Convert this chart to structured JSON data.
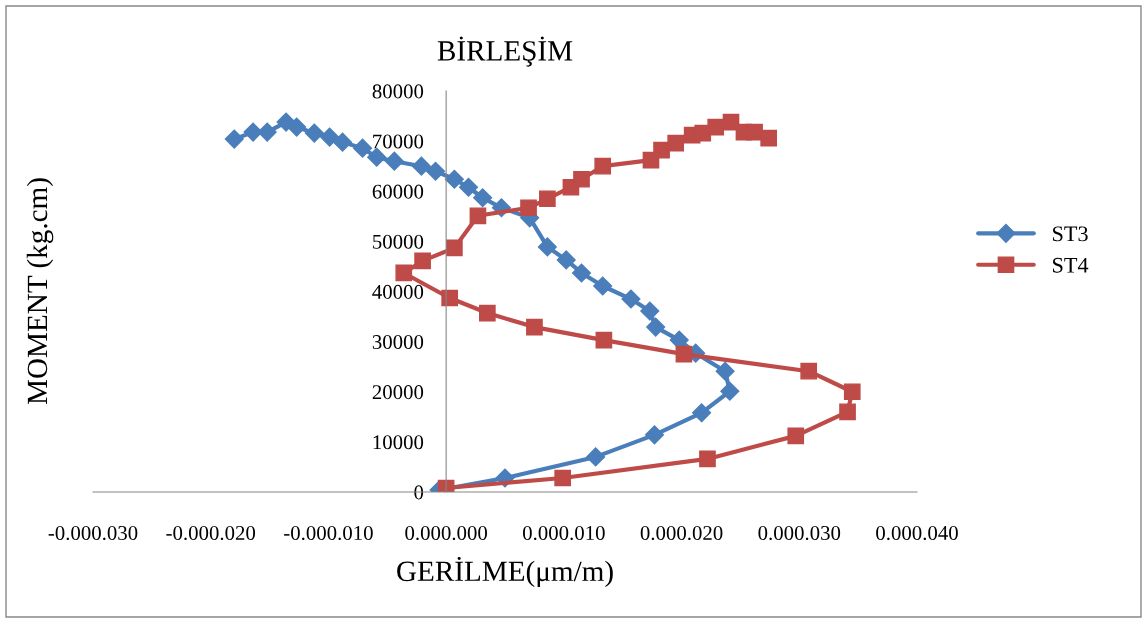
{
  "chart_data": {
    "type": "line",
    "title": "BİRLEŞİM",
    "xlabel": "GERİLME(μm/m)",
    "ylabel": "MOMENT (kg.cm)",
    "xlim": [
      -30,
      40
    ],
    "xticks": [
      {
        "value": -30,
        "label": "-0.000.030"
      },
      {
        "value": -20,
        "label": "-0.000.020"
      },
      {
        "value": -10,
        "label": "-0.000.010"
      },
      {
        "value": 0,
        "label": "0.000.000"
      },
      {
        "value": 10,
        "label": "0.000.010"
      },
      {
        "value": 20,
        "label": "0.000.020"
      },
      {
        "value": 30,
        "label": "0.000.030"
      },
      {
        "value": 40,
        "label": "0.000.040"
      }
    ],
    "ylim": [
      0,
      80000
    ],
    "yticks": [
      0,
      10000,
      20000,
      30000,
      40000,
      50000,
      60000,
      70000,
      80000
    ],
    "grid": false,
    "legend": "right",
    "line_style": "solid",
    "series": [
      {
        "name": "ST3",
        "color": "#4a7ebb",
        "marker": "diamond",
        "x": [
          -0.6,
          5.0,
          12.7,
          17.7,
          21.7,
          24.1,
          23.7,
          21.2,
          19.8,
          17.8,
          17.3,
          15.7,
          13.3,
          11.5,
          10.2,
          8.6,
          7.1,
          4.7,
          3.1,
          1.9,
          0.7,
          -0.9,
          -2.1,
          -4.4,
          -5.9,
          -7.1,
          -8.8,
          -9.9,
          -11.2,
          -12.7,
          -13.6,
          -15.2,
          -16.4,
          -18.0
        ],
        "values": [
          400,
          2800,
          7000,
          11400,
          15800,
          20100,
          24100,
          27700,
          30300,
          32900,
          36100,
          38500,
          41100,
          43700,
          46300,
          48900,
          54700,
          56700,
          58700,
          60800,
          62400,
          64000,
          65000,
          66000,
          66800,
          68600,
          69800,
          70800,
          71600,
          72800,
          73800,
          71800,
          71800,
          70400
        ]
      },
      {
        "name": "ST4",
        "color": "#be4b48",
        "marker": "square",
        "x": [
          0,
          9.9,
          22.2,
          29.7,
          34.1,
          34.5,
          30.8,
          20.2,
          13.4,
          7.5,
          3.5,
          0.3,
          -3.6,
          -2.0,
          0.7,
          2.7,
          7.0,
          8.6,
          10.6,
          11.5,
          13.3,
          17.4,
          18.3,
          19.5,
          20.9,
          21.8,
          22.9,
          24.2,
          25.3,
          26.2,
          27.4
        ],
        "values": [
          800,
          2800,
          6600,
          11200,
          16000,
          20000,
          24100,
          27500,
          30300,
          32900,
          35700,
          38700,
          43700,
          46100,
          48700,
          55100,
          56700,
          58500,
          60800,
          62400,
          65000,
          66200,
          68200,
          69600,
          71200,
          71600,
          72800,
          73800,
          71800,
          71800,
          70600
        ]
      }
    ]
  }
}
